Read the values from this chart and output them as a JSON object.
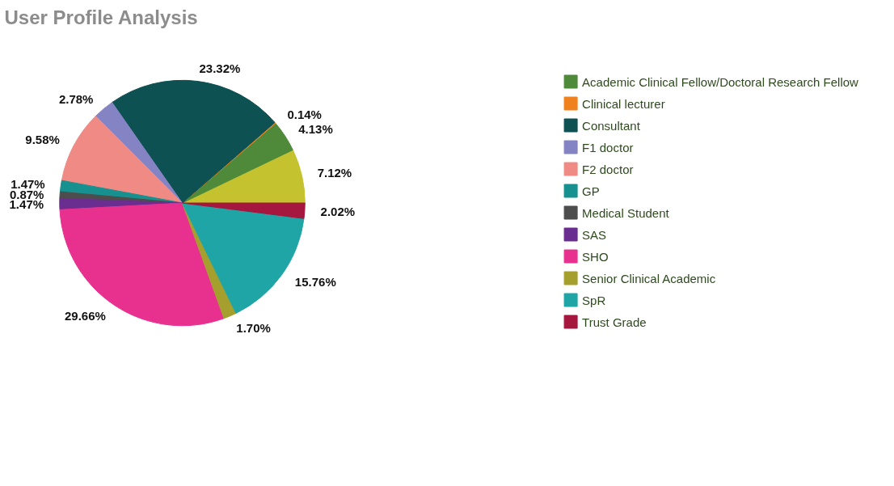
{
  "chart_data": {
    "type": "pie",
    "title": "User Profile Analysis",
    "categories": [
      null,
      "Academic Clinical Fellow/Doctoral Research Fellow",
      "Clinical lecturer",
      "Consultant",
      "F1 doctor",
      "F2 doctor",
      "GP",
      "Medical Student",
      "SAS",
      "SHO",
      "Senior Clinical Academic",
      "SpR",
      "Trust Grade"
    ],
    "values": [
      7.12,
      4.13,
      0.14,
      23.32,
      2.78,
      9.58,
      1.47,
      0.87,
      1.47,
      29.66,
      1.7,
      15.76,
      2.02
    ],
    "colors": [
      "#c4c22e",
      "#4e8a3a",
      "#f0821e",
      "#0e5152",
      "#8484c4",
      "#f08a84",
      "#17918f",
      "#4d4d4d",
      "#6a2d90",
      "#e8318f",
      "#a5a02e",
      "#1fa5a5",
      "#a5173f"
    ],
    "value_labels": [
      "7.12%",
      "4.13%",
      "0.14%",
      "23.32%",
      "2.78%",
      "9.58%",
      "1.47%",
      "0.87%",
      "1.47%",
      "29.66%",
      "1.70%",
      "15.76%",
      "2.02%"
    ],
    "legend": "right"
  }
}
